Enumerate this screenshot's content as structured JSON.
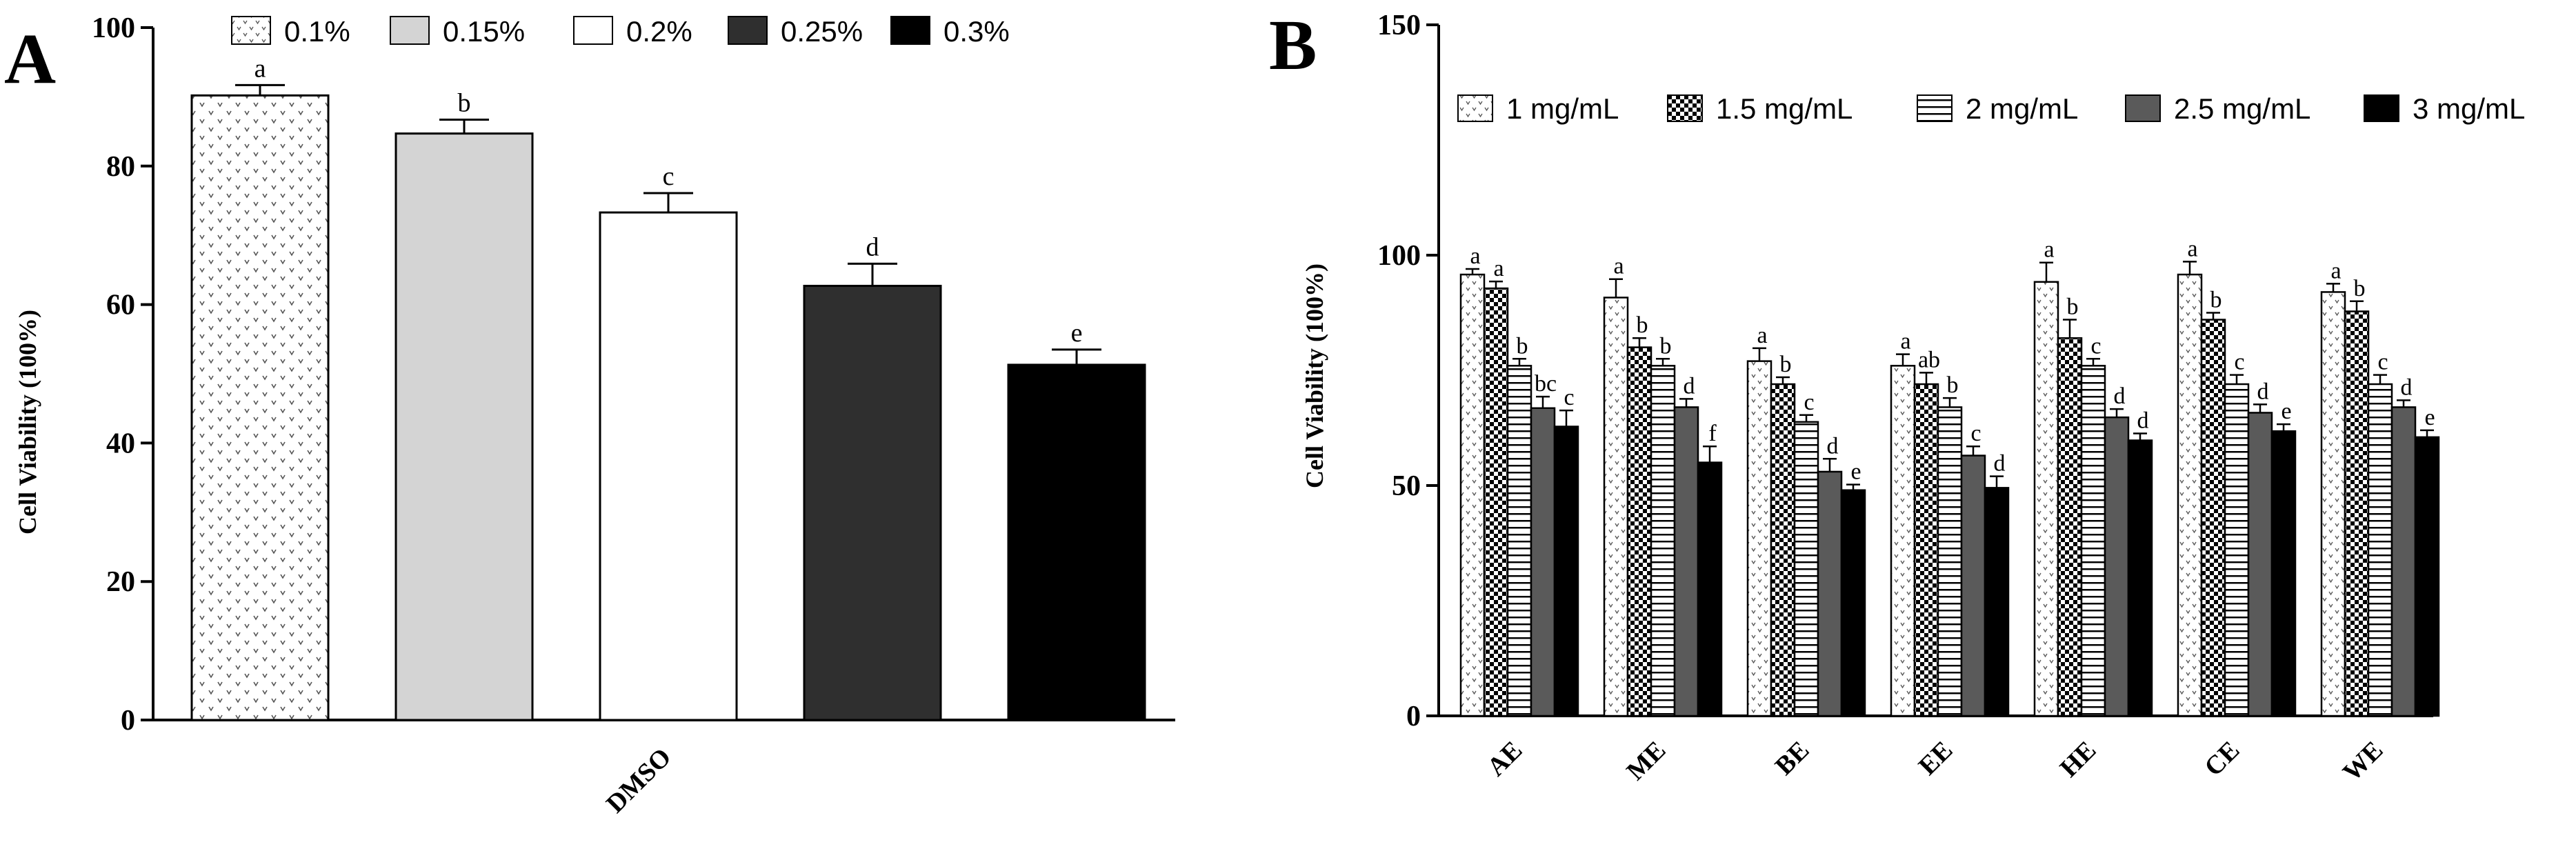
{
  "figure": {
    "panel_a_letter": "A",
    "panel_b_letter": "B"
  },
  "colors": {
    "c1": "#ffffff",
    "c2": "#d4d4d4",
    "c3": "#ffffff",
    "c4": "#2f2f2f",
    "c5": "#000000",
    "b3": "#ffffff",
    "b4": "#5a5a5a",
    "b5": "#000000"
  },
  "chart_data": [
    {
      "type": "bar",
      "panel": "A",
      "title": "",
      "xlabel": "",
      "ylabel": "Cell Viability (100%)",
      "ylim": [
        0,
        100
      ],
      "yticks": [
        0,
        20,
        40,
        60,
        80,
        100
      ],
      "categories": [
        "DMSO"
      ],
      "series": [
        {
          "name": "0.1%",
          "values": [
            90.2
          ],
          "errors": [
            1.5
          ],
          "labels": [
            "a"
          ],
          "pattern": "dots",
          "color_key": "c1"
        },
        {
          "name": "0.15%",
          "values": [
            84.7
          ],
          "errors": [
            2.0
          ],
          "labels": [
            "b"
          ],
          "pattern": "solid",
          "color_key": "c2"
        },
        {
          "name": "0.2%",
          "values": [
            73.3
          ],
          "errors": [
            2.8
          ],
          "labels": [
            "c"
          ],
          "pattern": "solid",
          "color_key": "c3"
        },
        {
          "name": "0.25%",
          "values": [
            62.7
          ],
          "errors": [
            3.2
          ],
          "labels": [
            "d"
          ],
          "pattern": "solid",
          "color_key": "c4"
        },
        {
          "name": "0.3%",
          "values": [
            51.3
          ],
          "errors": [
            2.2
          ],
          "labels": [
            "e"
          ],
          "pattern": "solid",
          "color_key": "c5"
        }
      ],
      "legend": "top"
    },
    {
      "type": "bar",
      "panel": "B",
      "title": "",
      "xlabel": "",
      "ylabel": "Cell Viability (100%)",
      "ylim": [
        0,
        150
      ],
      "yticks": [
        0,
        50,
        100,
        150
      ],
      "categories": [
        "AE",
        "ME",
        "BE",
        "EE",
        "HE",
        "CE",
        "WE"
      ],
      "series": [
        {
          "name": "1 mg/mL",
          "values": [
            95.8,
            90.8,
            77.0,
            76.0,
            94.2,
            95.8,
            92.0
          ],
          "errors": [
            1.2,
            4.0,
            2.8,
            2.5,
            4.2,
            2.8,
            1.8
          ],
          "labels": [
            "a",
            "a",
            "a",
            "a",
            "a",
            "a",
            "a"
          ],
          "pattern": "dots",
          "color_key": "b3"
        },
        {
          "name": "1.5 mg/mL",
          "values": [
            92.8,
            80.0,
            72.0,
            72.0,
            82.0,
            86.0,
            87.8
          ],
          "errors": [
            1.5,
            2.0,
            1.5,
            2.5,
            4.0,
            1.5,
            2.2
          ],
          "labels": [
            "a",
            "b",
            "b",
            "ab",
            "b",
            "b",
            "b"
          ],
          "pattern": "checker",
          "color_key": "b3"
        },
        {
          "name": "2 mg/mL",
          "values": [
            76.0,
            76.0,
            63.8,
            67.0,
            76.0,
            72.0,
            72.0
          ],
          "errors": [
            1.5,
            1.5,
            1.5,
            2.0,
            1.5,
            2.0,
            2.0
          ],
          "labels": [
            "b",
            "b",
            "c",
            "b",
            "c",
            "c",
            "c"
          ],
          "pattern": "hlines",
          "color_key": "b3"
        },
        {
          "name": "2.5 mg/mL",
          "values": [
            66.8,
            67.0,
            53.0,
            56.5,
            64.8,
            65.8,
            67.0
          ],
          "errors": [
            2.5,
            1.8,
            2.8,
            2.0,
            1.8,
            1.8,
            1.5
          ],
          "labels": [
            "bc",
            "d",
            "d",
            "c",
            "d",
            "d",
            "d"
          ],
          "pattern": "solid",
          "color_key": "b4"
        },
        {
          "name": "3 mg/mL",
          "values": [
            62.8,
            55.0,
            49.0,
            49.5,
            59.8,
            61.8,
            60.5
          ],
          "errors": [
            3.5,
            3.5,
            1.2,
            2.5,
            1.5,
            1.5,
            1.5
          ],
          "labels": [
            "c",
            "f",
            "e",
            "d",
            "d",
            "e",
            "e"
          ],
          "pattern": "solid",
          "color_key": "b5"
        }
      ],
      "legend": "top-right"
    }
  ]
}
